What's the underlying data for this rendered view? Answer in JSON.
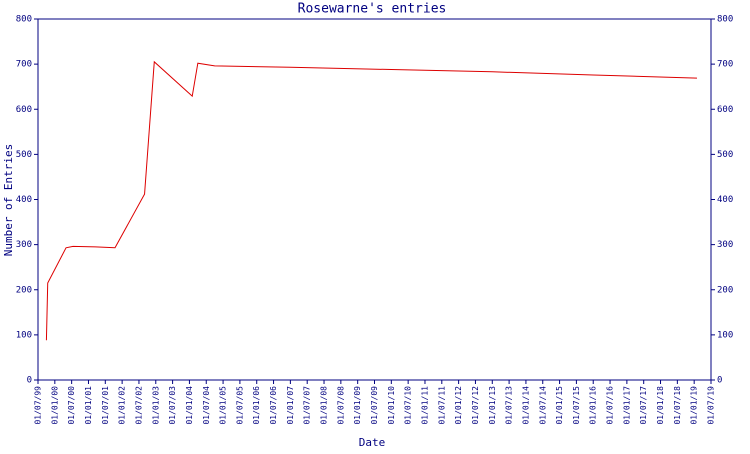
{
  "chart_data": {
    "type": "line",
    "title": "Rosewarne's entries",
    "x_label": "Date",
    "y_label": "Number of Entries",
    "x": [
      "01/10/99",
      "15/10/99",
      "01/05/00",
      "15/07/00",
      "15/03/01",
      "15/10/01",
      "01/09/02",
      "15/12/02",
      "01/02/04",
      "01/04/04",
      "01/10/04",
      "01/01/07",
      "01/01/10",
      "01/01/13",
      "01/01/16",
      "01/02/19"
    ],
    "series": [
      {
        "name": "Entries",
        "color": "#dd0000",
        "values": [
          88,
          215,
          293,
          296,
          295,
          293,
          412,
          705,
          629,
          702,
          696,
          693,
          688,
          683,
          676,
          669
        ]
      }
    ],
    "xlim": [
      "01/07/99",
      "01/07/19"
    ],
    "xticks": [
      "01/07/99",
      "01/01/00",
      "01/07/00",
      "01/01/01",
      "01/07/01",
      "01/01/02",
      "01/07/02",
      "01/01/03",
      "01/07/03",
      "01/01/04",
      "01/07/04",
      "01/01/05",
      "01/07/05",
      "01/01/06",
      "01/07/06",
      "01/01/07",
      "01/07/07",
      "01/01/08",
      "01/07/08",
      "01/01/09",
      "01/07/09",
      "01/01/10",
      "01/07/10",
      "01/01/11",
      "01/07/11",
      "01/01/12",
      "01/07/12",
      "01/01/13",
      "01/07/13",
      "01/01/14",
      "01/07/14",
      "01/01/15",
      "01/07/15",
      "01/01/16",
      "01/07/16",
      "01/01/17",
      "01/07/17",
      "01/01/18",
      "01/07/18",
      "01/01/19",
      "01/07/19"
    ],
    "ylim": [
      0,
      800
    ],
    "yticks": [
      0,
      100,
      200,
      300,
      400,
      500,
      600,
      700,
      800
    ],
    "y2lim": [
      0,
      800
    ],
    "y2ticks": [
      0,
      100,
      200,
      300,
      400,
      500,
      600,
      700,
      800
    ],
    "axis_color": "#000080",
    "grid": false
  }
}
